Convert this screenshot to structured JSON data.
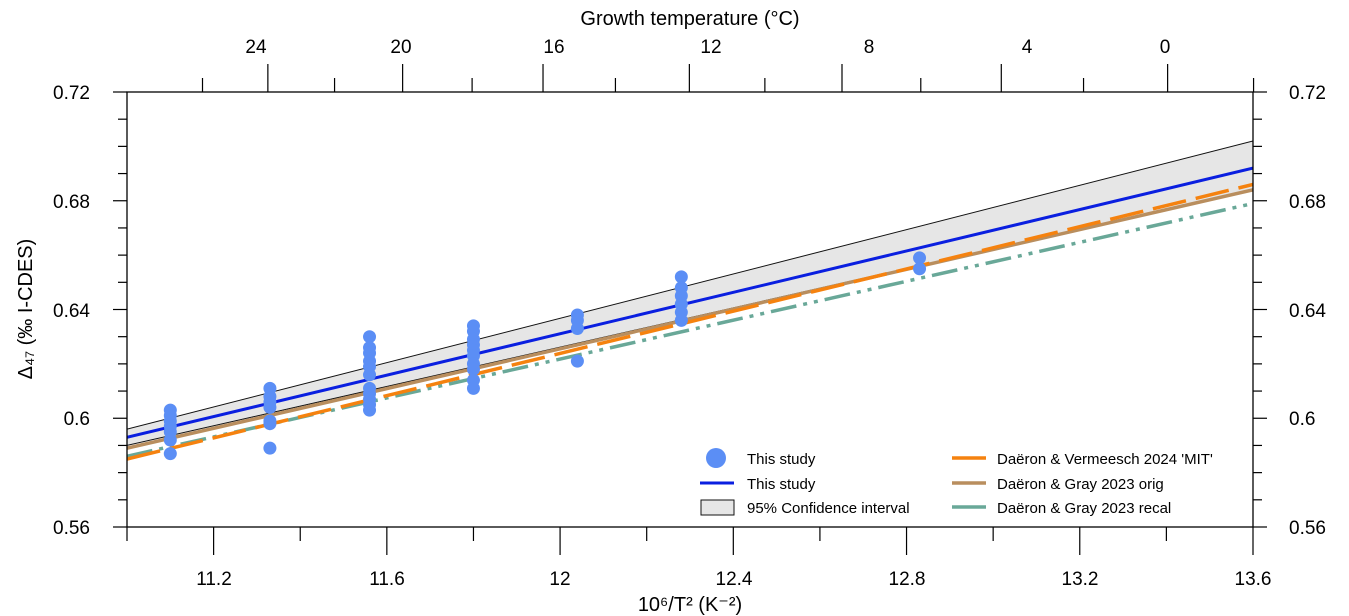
{
  "chart_data": {
    "type": "scatter",
    "xlabel": "10⁶/T² (K⁻²)",
    "x2label": "Growth temperature (°C)",
    "ylabel": "Δ₄₇ (‰ I-CDES)",
    "xlim": [
      11.0,
      13.6
    ],
    "ylim": [
      0.56,
      0.72
    ],
    "x_ticks": [
      "11.2",
      "11.6",
      "12",
      "12.4",
      "12.8",
      "13.2",
      "13.6"
    ],
    "y_ticks": [
      "0.56",
      "0.6",
      "0.64",
      "0.68",
      "0.72"
    ],
    "top_ticks": [
      "24",
      "20",
      "16",
      "12",
      "8",
      "4",
      "0"
    ],
    "top_tick_values": [
      24,
      20,
      16,
      12,
      8,
      4,
      0
    ],
    "grid": false,
    "legend_position": "bottom-right",
    "series": [
      {
        "name": "This study",
        "kind": "points",
        "color": "#5b8ef5",
        "points": [
          [
            11.1,
            0.603
          ],
          [
            11.1,
            0.601
          ],
          [
            11.1,
            0.599
          ],
          [
            11.1,
            0.597
          ],
          [
            11.1,
            0.595
          ],
          [
            11.1,
            0.592
          ],
          [
            11.1,
            0.587
          ],
          [
            11.33,
            0.611
          ],
          [
            11.33,
            0.608
          ],
          [
            11.33,
            0.606
          ],
          [
            11.33,
            0.604
          ],
          [
            11.33,
            0.599
          ],
          [
            11.33,
            0.598
          ],
          [
            11.33,
            0.589
          ],
          [
            11.56,
            0.63
          ],
          [
            11.56,
            0.626
          ],
          [
            11.56,
            0.624
          ],
          [
            11.56,
            0.621
          ],
          [
            11.56,
            0.619
          ],
          [
            11.56,
            0.616
          ],
          [
            11.56,
            0.611
          ],
          [
            11.56,
            0.609
          ],
          [
            11.56,
            0.607
          ],
          [
            11.56,
            0.605
          ],
          [
            11.56,
            0.603
          ],
          [
            11.8,
            0.634
          ],
          [
            11.8,
            0.632
          ],
          [
            11.8,
            0.629
          ],
          [
            11.8,
            0.627
          ],
          [
            11.8,
            0.625
          ],
          [
            11.8,
            0.623
          ],
          [
            11.8,
            0.62
          ],
          [
            11.8,
            0.618
          ],
          [
            11.8,
            0.614
          ],
          [
            11.8,
            0.611
          ],
          [
            12.04,
            0.638
          ],
          [
            12.04,
            0.636
          ],
          [
            12.04,
            0.633
          ],
          [
            12.04,
            0.621
          ],
          [
            12.28,
            0.652
          ],
          [
            12.28,
            0.648
          ],
          [
            12.28,
            0.645
          ],
          [
            12.28,
            0.642
          ],
          [
            12.28,
            0.639
          ],
          [
            12.28,
            0.636
          ],
          [
            12.83,
            0.659
          ],
          [
            12.83,
            0.655
          ]
        ]
      },
      {
        "name": "This study",
        "kind": "line",
        "color": "#0a1fe0",
        "x": [
          11.0,
          13.6
        ],
        "y": [
          0.593,
          0.692
        ]
      },
      {
        "name": "95% Confidence interval",
        "kind": "band",
        "color": "#e6e6e6",
        "x": [
          11.0,
          13.6
        ],
        "upper": [
          0.596,
          0.702
        ],
        "lower": [
          0.59,
          0.684
        ]
      },
      {
        "name": "Daëron & Vermeesch 2024 'MIT'",
        "kind": "line",
        "color": "#f5820f",
        "dash": "long-dash",
        "x": [
          11.0,
          13.6
        ],
        "y": [
          0.585,
          0.686
        ]
      },
      {
        "name": "Daëron & Gray 2023 orig",
        "kind": "line",
        "color": "#b98e5e",
        "dash": "solid",
        "x": [
          11.0,
          13.6
        ],
        "y": [
          0.589,
          0.684
        ]
      },
      {
        "name": "Daëron & Gray 2023 recal",
        "kind": "line",
        "color": "#69a898",
        "dash": "dash-dot-dot",
        "x": [
          11.0,
          13.6
        ],
        "y": [
          0.586,
          0.679
        ]
      }
    ]
  }
}
